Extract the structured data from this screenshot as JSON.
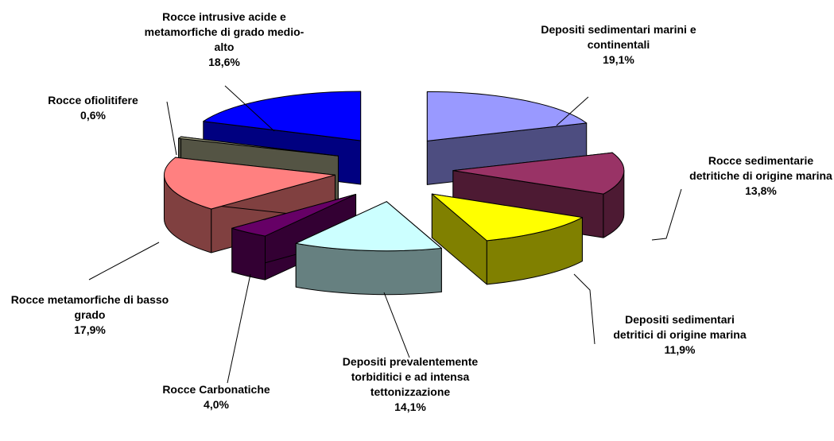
{
  "chart_data": {
    "type": "pie3d",
    "categories": [
      "Depositi sedimentari marini e continentali",
      "Rocce sedimentarie detritiche di origine marina",
      "Depositi sedimentari detritici di origine marina",
      "Depositi prevalentemente torbiditici e ad intensa tettonizzazione",
      "Rocce Carbonatiche",
      "Rocce metamorfiche di basso grado",
      "Rocce ofiolitifere",
      "Rocce intrusive acide e metamorfiche di grado medio-alto"
    ],
    "values": [
      19.1,
      13.8,
      11.9,
      14.1,
      4.0,
      17.9,
      0.6,
      18.6
    ],
    "value_labels": [
      "19,1%",
      "13,8%",
      "11,9%",
      "14,1%",
      "4,0%",
      "17,9%",
      "0,6%",
      "18,6%"
    ],
    "colors": [
      "#9999ff",
      "#993366",
      "#ffff00",
      "#ccffff",
      "#660066",
      "#ff8080",
      "#a8a888",
      "#0000ff"
    ]
  }
}
